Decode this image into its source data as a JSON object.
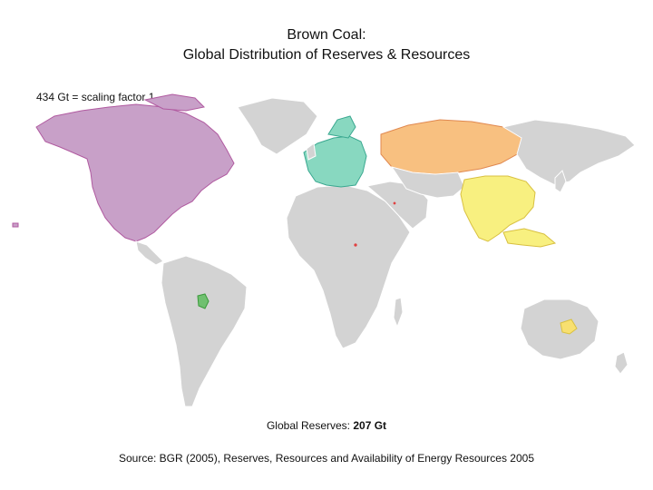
{
  "title_line1": "Brown  Coal:",
  "title_line2": "Global Distribution of Reserves & Resources",
  "scale_note": "434 Gt = scaling factor 1",
  "reserves_label": "Global Reserves: ",
  "reserves_value": "207 Gt",
  "source": "Source: BGR (2005), Reserves, Resources and Availability of Energy Resources 2005",
  "colors": {
    "land": "#d3d3d3",
    "north_america": "#c8a0c8",
    "north_america_border": "#b05aa0",
    "europe": "#88d8c0",
    "europe_border": "#3aa890",
    "russia": "#f8c080",
    "russia_border": "#e08850",
    "asia": "#f8f080",
    "asia_border": "#d8c040",
    "australia": "#f8e070",
    "latin_america": "#70c070",
    "africa_middle_east": "#e04040"
  }
}
